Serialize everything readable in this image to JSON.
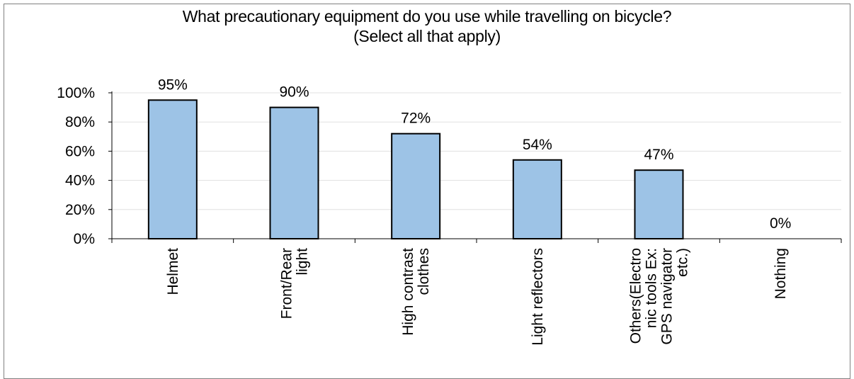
{
  "chart_data": {
    "type": "bar",
    "title_lines": [
      "What precautionary equipment do you use while travelling on bicycle?",
      "(Select all that apply)"
    ],
    "categories": [
      [
        "Helmet"
      ],
      [
        "Front/Rear",
        "light"
      ],
      [
        "High contrast",
        "clothes"
      ],
      [
        "Light reflectors"
      ],
      [
        "Others(Electro",
        "nic tools Ex:",
        "GPS navigator",
        "etc.)"
      ],
      [
        "Nothing"
      ]
    ],
    "values": [
      95,
      90,
      72,
      54,
      47,
      0
    ],
    "data_labels": [
      "95%",
      "90%",
      "72%",
      "54%",
      "47%",
      "0%"
    ],
    "ylim": [
      0,
      100
    ],
    "yticks": [
      0,
      20,
      40,
      60,
      80,
      100
    ],
    "ytick_labels": [
      "0%",
      "20%",
      "40%",
      "60%",
      "80%",
      "100%"
    ],
    "grid": true,
    "legend": "none",
    "colors": {
      "bar_fill": "#9DC3E6",
      "bar_stroke": "#000000",
      "grid": "#E0E0E0",
      "axis": "#000000"
    }
  }
}
